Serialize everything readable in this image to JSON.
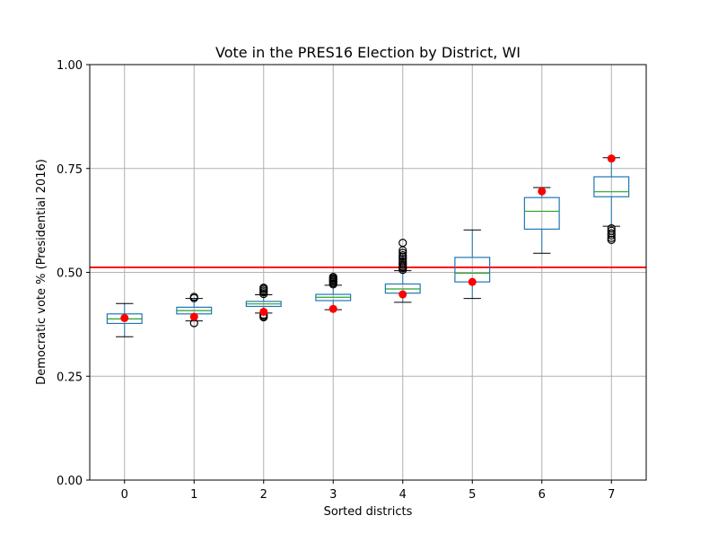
{
  "chart_data": {
    "type": "box",
    "title": "Vote in the PRES16 Election by District, WI",
    "xlabel": "Sorted districts",
    "ylabel": "Democratic vote % (Presidential 2016)",
    "ylim": [
      0,
      1
    ],
    "yticks": [
      "0.00",
      "0.25",
      "0.50",
      "0.75",
      "1.00"
    ],
    "ytick_values": [
      0,
      0.25,
      0.5,
      0.75,
      1.0
    ],
    "categories": [
      "0",
      "1",
      "2",
      "3",
      "4",
      "5",
      "6",
      "7"
    ],
    "grid": true,
    "reference_line": {
      "value": 0.512,
      "color": "#ff0000"
    },
    "colors": {
      "box": "#1f77b4",
      "median": "#2ca02c",
      "marker": "#ff0000",
      "flier": "#000000",
      "whisker": "#000000",
      "grid": "#b0b0b0"
    },
    "boxes": [
      {
        "category": "0",
        "whislo": 0.345,
        "q1": 0.377,
        "med": 0.388,
        "q3": 0.4,
        "whishi": 0.425,
        "fliers": [],
        "marker": 0.39
      },
      {
        "category": "1",
        "whislo": 0.383,
        "q1": 0.4,
        "med": 0.408,
        "q3": 0.416,
        "whishi": 0.437,
        "fliers": [
          0.378,
          0.438,
          0.441
        ],
        "marker": 0.393
      },
      {
        "category": "2",
        "whislo": 0.402,
        "q1": 0.418,
        "med": 0.424,
        "q3": 0.43,
        "whishi": 0.446,
        "fliers": [
          0.392,
          0.395,
          0.398,
          0.448,
          0.452,
          0.456,
          0.46,
          0.463
        ],
        "marker": 0.405
      },
      {
        "category": "3",
        "whislo": 0.41,
        "q1": 0.432,
        "med": 0.44,
        "q3": 0.447,
        "whishi": 0.469,
        "fliers": [
          0.471,
          0.474,
          0.477,
          0.48,
          0.483,
          0.486,
          0.489
        ],
        "marker": 0.412
      },
      {
        "category": "4",
        "whislo": 0.428,
        "q1": 0.45,
        "med": 0.46,
        "q3": 0.472,
        "whishi": 0.504,
        "fliers": [
          0.506,
          0.51,
          0.514,
          0.518,
          0.522,
          0.527,
          0.532,
          0.537,
          0.541,
          0.547,
          0.553,
          0.571
        ],
        "marker": 0.447
      },
      {
        "category": "5",
        "whislo": 0.437,
        "q1": 0.477,
        "med": 0.498,
        "q3": 0.536,
        "whishi": 0.602,
        "fliers": [],
        "marker": 0.477
      },
      {
        "category": "6",
        "whislo": 0.546,
        "q1": 0.604,
        "med": 0.647,
        "q3": 0.68,
        "whishi": 0.704,
        "fliers": [],
        "marker": 0.695
      },
      {
        "category": "7",
        "whislo": 0.611,
        "q1": 0.682,
        "med": 0.694,
        "q3": 0.73,
        "whishi": 0.776,
        "fliers": [
          0.578,
          0.583,
          0.589,
          0.594,
          0.6,
          0.606
        ],
        "marker": 0.774
      }
    ]
  }
}
